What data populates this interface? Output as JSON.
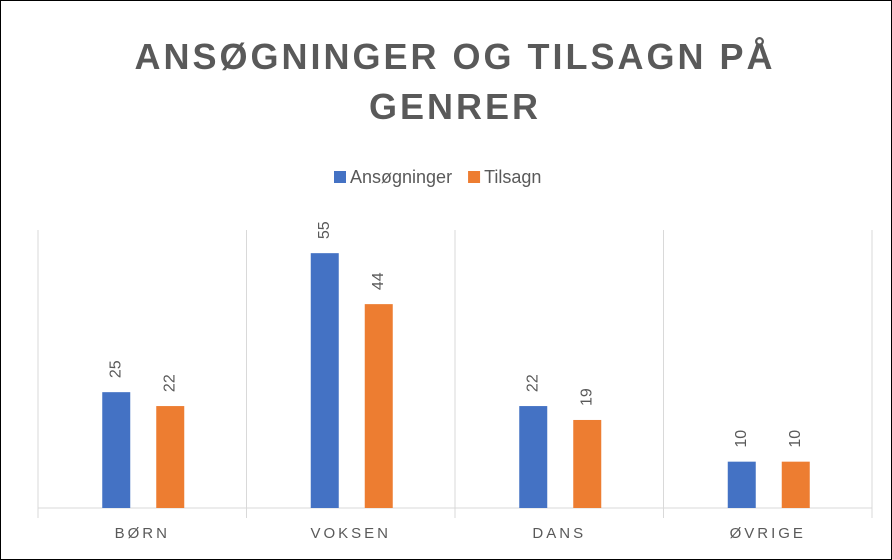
{
  "chart_data": {
    "type": "bar",
    "title": "ANSØGNINGER OG TILSAGN PÅ GENRER",
    "categories": [
      "BØRN",
      "VOKSEN",
      "DANS",
      "ØVRIGE"
    ],
    "series": [
      {
        "name": "Ansøgninger",
        "color": "#4472c4",
        "values": [
          25,
          55,
          22,
          10
        ]
      },
      {
        "name": "Tilsagn",
        "color": "#ed7d31",
        "values": [
          22,
          44,
          19,
          10
        ]
      }
    ],
    "ylim": [
      0,
      60
    ],
    "legend": "top"
  }
}
